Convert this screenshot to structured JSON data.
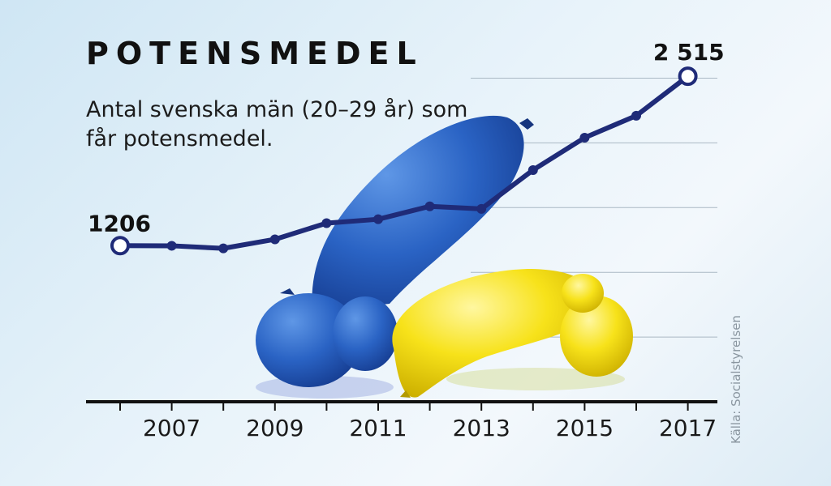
{
  "chart_data": {
    "type": "line",
    "title": "POTENSMEDEL",
    "subtitle": "Antal svenska män (20–29 år) som får potensmedel.",
    "source": "Källa: Socialstyrelsen",
    "x": [
      2006,
      2007,
      2008,
      2009,
      2010,
      2011,
      2012,
      2013,
      2014,
      2015,
      2016,
      2017
    ],
    "tick_labels": [
      "2007",
      "2009",
      "2011",
      "2013",
      "2015",
      "2017"
    ],
    "values": [
      1206,
      1205,
      1185,
      1255,
      1380,
      1410,
      1510,
      1490,
      1790,
      2040,
      2210,
      2515
    ],
    "annotations": [
      {
        "year": 2006,
        "label": "1206"
      },
      {
        "year": 2017,
        "label": "2 515"
      }
    ],
    "ylim": [
      0,
      2750
    ],
    "grid": true,
    "xlabel": "",
    "ylabel": "",
    "colors": {
      "line": "#1f2b78",
      "grid": "#aab8c4",
      "axis": "#111111",
      "marker_fill": "#ffffff"
    }
  },
  "decoration": {
    "illustration": "balloons-icon"
  }
}
